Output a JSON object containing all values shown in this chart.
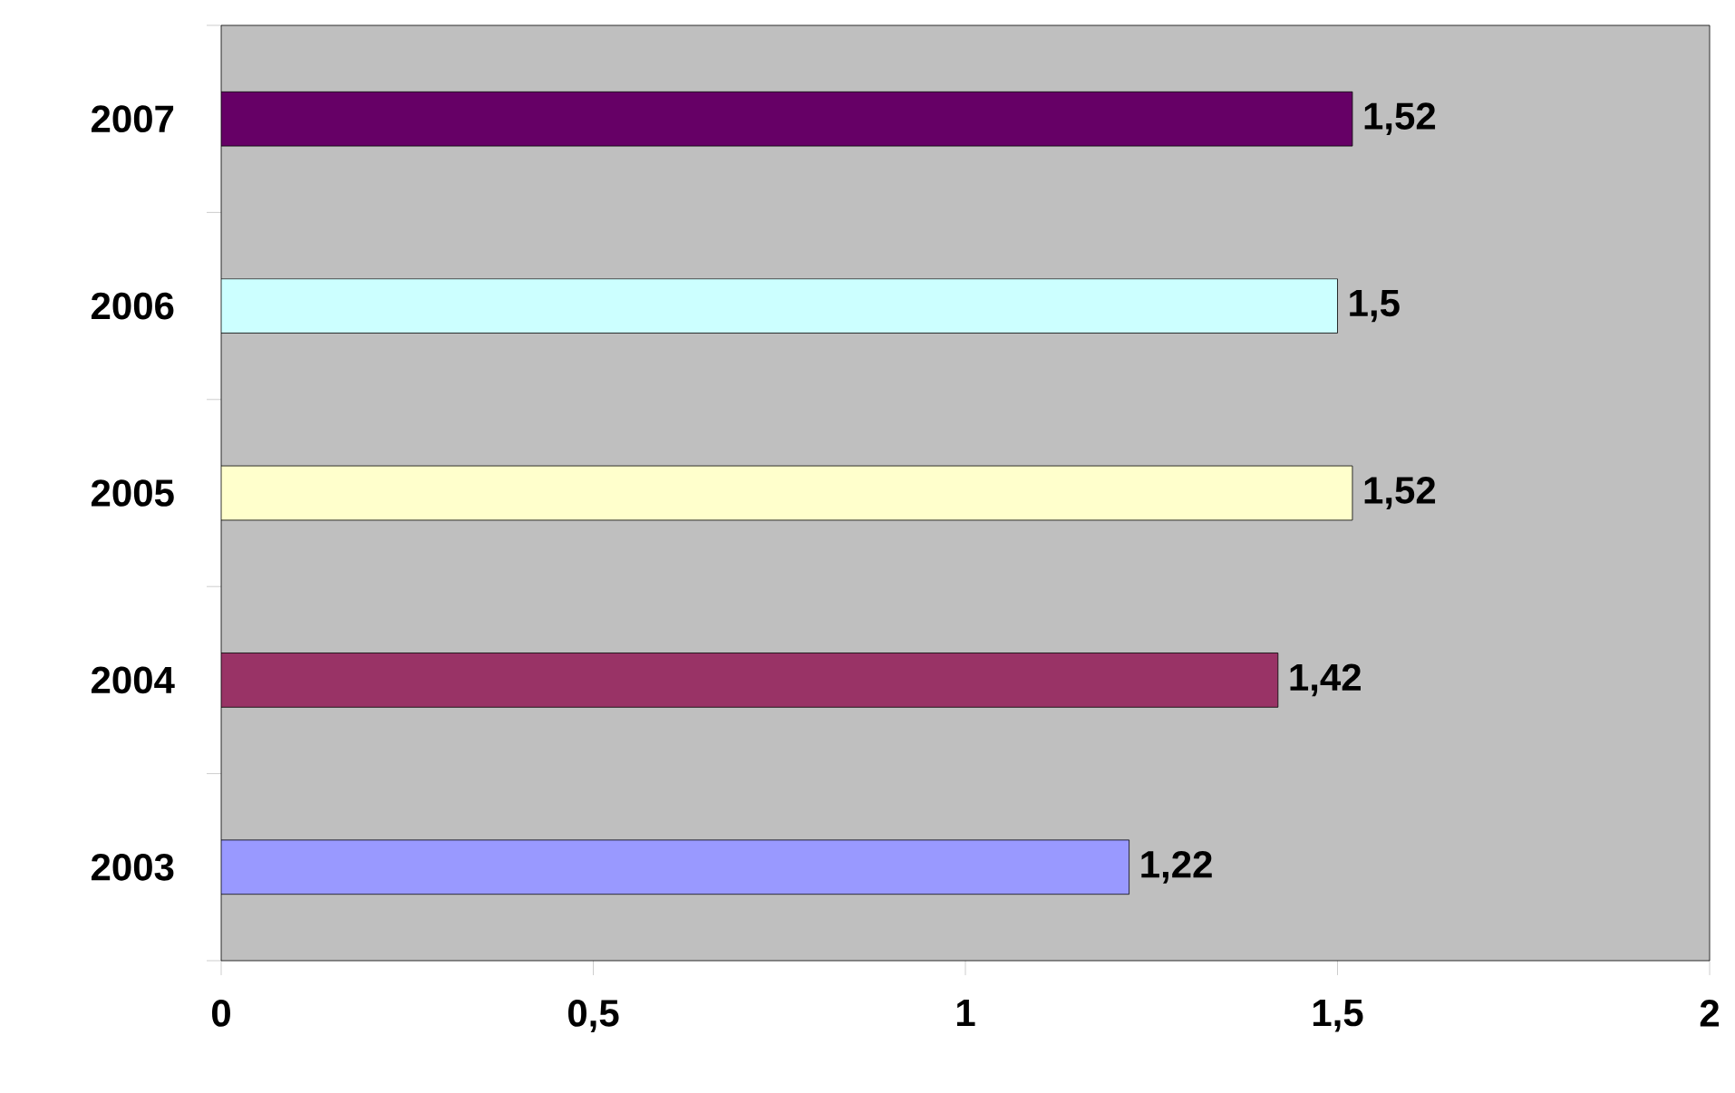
{
  "chart_data": {
    "type": "bar",
    "orientation": "horizontal",
    "categories": [
      "2007",
      "2006",
      "2005",
      "2004",
      "2003"
    ],
    "values": [
      1.52,
      1.5,
      1.52,
      1.42,
      1.22
    ],
    "colors": [
      "#660066",
      "#ccffff",
      "#ffffcc",
      "#993366",
      "#9999ff"
    ],
    "value_labels": [
      "1,52",
      "1,5",
      "1,52",
      "1,42",
      "1,22"
    ],
    "xlim": [
      0,
      2
    ],
    "xticks": [
      0,
      {
        "value": 0.5,
        "label": "0,5"
      },
      1,
      {
        "value": 1.5,
        "label": "1,5"
      },
      2
    ]
  }
}
